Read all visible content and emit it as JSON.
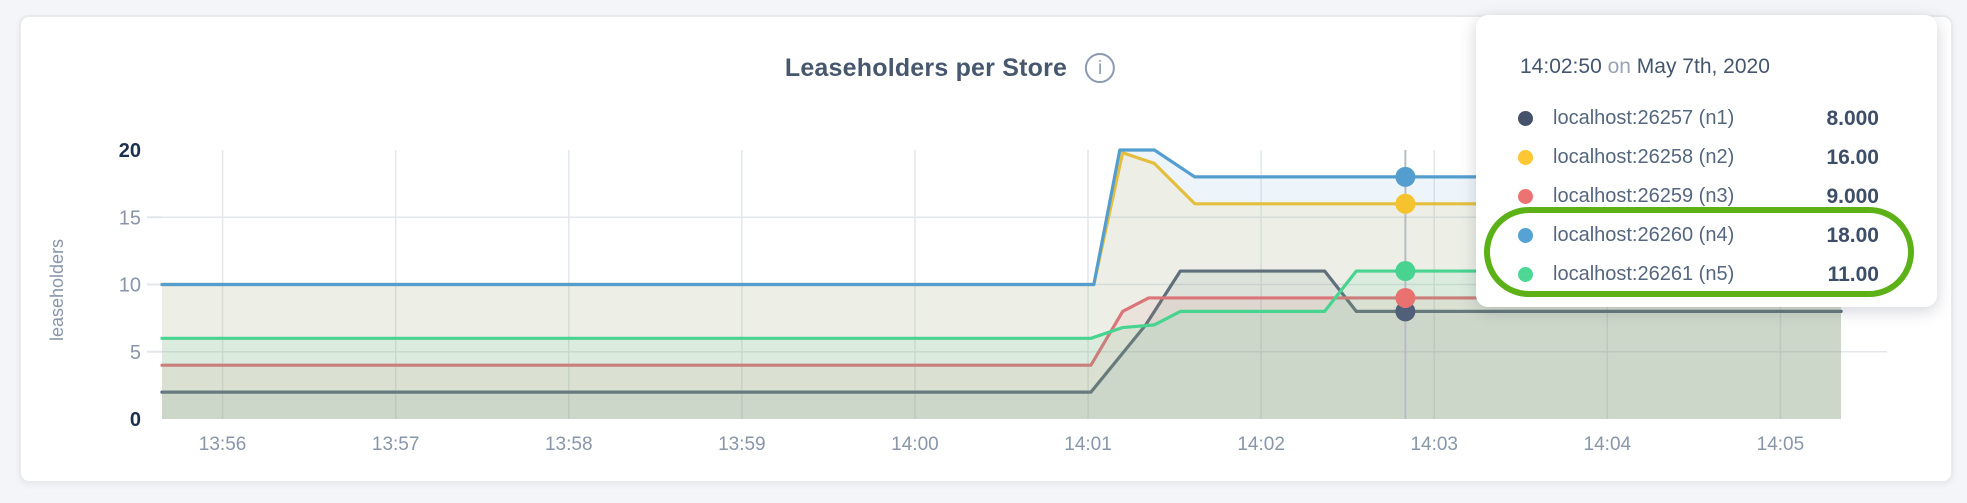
{
  "header": {
    "title": "Leaseholders per Store",
    "info_icon_glyph": "i"
  },
  "chart_data": {
    "type": "area",
    "title": "Leaseholders per Store",
    "xlabel": "",
    "ylabel": "leaseholders",
    "ylim": [
      0,
      20
    ],
    "grid": true,
    "fill_opacity": 0.1,
    "yticks": [
      {
        "value": 0,
        "label": "0",
        "emphasis": true
      },
      {
        "value": 5,
        "label": "5",
        "emphasis": false
      },
      {
        "value": 10,
        "label": "10",
        "emphasis": false
      },
      {
        "value": 15,
        "label": "15",
        "emphasis": false
      },
      {
        "value": 20,
        "label": "20",
        "emphasis": true
      }
    ],
    "x_domain_seconds_after_1355": [
      39,
      621
    ],
    "xticks": [
      {
        "s": 60,
        "label": "13:56"
      },
      {
        "s": 120,
        "label": "13:57"
      },
      {
        "s": 180,
        "label": "13:58"
      },
      {
        "s": 240,
        "label": "13:59"
      },
      {
        "s": 300,
        "label": "14:00"
      },
      {
        "s": 360,
        "label": "14:01"
      },
      {
        "s": 420,
        "label": "14:02"
      },
      {
        "s": 480,
        "label": "14:03"
      },
      {
        "s": 540,
        "label": "14:04"
      },
      {
        "s": 600,
        "label": "14:05"
      }
    ],
    "series": [
      {
        "id": "n1",
        "name": "localhost:26257 (n1)",
        "color": "#50607A",
        "points": [
          [
            39,
            2
          ],
          [
            361,
            2
          ],
          [
            380,
            7
          ],
          [
            392,
            11
          ],
          [
            442,
            11
          ],
          [
            453,
            8
          ],
          [
            621,
            8
          ]
        ]
      },
      {
        "id": "n2",
        "name": "localhost:26258 (n2)",
        "color": "#F4C32E",
        "points": [
          [
            39,
            10
          ],
          [
            362,
            10
          ],
          [
            372,
            19.8
          ],
          [
            383,
            19
          ],
          [
            397,
            16
          ],
          [
            621,
            16
          ]
        ]
      },
      {
        "id": "n3",
        "name": "localhost:26259 (n3)",
        "color": "#E97170",
        "points": [
          [
            39,
            4
          ],
          [
            361,
            4
          ],
          [
            372,
            8
          ],
          [
            381,
            9
          ],
          [
            621,
            9
          ]
        ]
      },
      {
        "id": "n4",
        "name": "localhost:26260 (n4)",
        "color": "#549ECF",
        "points": [
          [
            39,
            10
          ],
          [
            362,
            10
          ],
          [
            371,
            20
          ],
          [
            383,
            20
          ],
          [
            397,
            18
          ],
          [
            621,
            18
          ]
        ]
      },
      {
        "id": "n5",
        "name": "localhost:26261 (n5)",
        "color": "#48D391",
        "points": [
          [
            39,
            6
          ],
          [
            361,
            6
          ],
          [
            372,
            6.8
          ],
          [
            383,
            7
          ],
          [
            392,
            8
          ],
          [
            442,
            8
          ],
          [
            453,
            11
          ],
          [
            621,
            11
          ]
        ]
      }
    ],
    "hover": {
      "s": 470,
      "line_color": "#B9BDC2",
      "dot_radius": 10,
      "values": {
        "n1": 8,
        "n2": 16,
        "n3": 9,
        "n4": 18,
        "n5": 11
      }
    }
  },
  "tooltip": {
    "time": "14:02:50",
    "preposition": "on",
    "date": "May 7th, 2020",
    "rows": [
      {
        "series": "n1",
        "label": "localhost:26257 (n1)",
        "value": "8.000",
        "color": "#44526B",
        "highlighted": false
      },
      {
        "series": "n2",
        "label": "localhost:26258 (n2)",
        "value": "16.00",
        "color": "#FFC733",
        "highlighted": false
      },
      {
        "series": "n3",
        "label": "localhost:26259 (n3)",
        "value": "9.000",
        "color": "#ED7373",
        "highlighted": false
      },
      {
        "series": "n4",
        "label": "localhost:26260 (n4)",
        "value": "18.00",
        "color": "#56A2D4",
        "highlighted": true
      },
      {
        "series": "n5",
        "label": "localhost:26261 (n5)",
        "value": "11.00",
        "color": "#4ED695",
        "highlighted": true
      }
    ],
    "annotation": {
      "shape": "ellipse",
      "color": "#5CB117"
    }
  },
  "colors": {
    "page_background": "#F4F5F8",
    "panel_background": "#FFFFFF",
    "grid": "#E3E7EB",
    "axis_label": "#8996AA",
    "axis_label_emphasis": "#1C3150",
    "title_text": "#47586E"
  }
}
